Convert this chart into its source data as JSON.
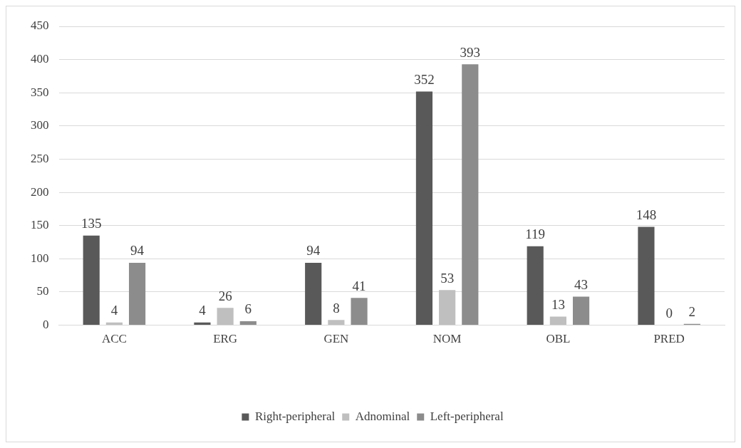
{
  "chart_data": {
    "type": "bar",
    "categories": [
      "ACC",
      "ERG",
      "GEN",
      "NOM",
      "OBL",
      "PRED"
    ],
    "series": [
      {
        "name": "Right-peripheral",
        "color": "#595959",
        "values": [
          135,
          4,
          94,
          352,
          119,
          148
        ]
      },
      {
        "name": "Adnominal",
        "color": "#bfbfbf",
        "values": [
          4,
          26,
          8,
          53,
          13,
          0
        ]
      },
      {
        "name": "Left-peripheral",
        "color": "#8c8c8c",
        "values": [
          94,
          6,
          41,
          393,
          43,
          2
        ]
      }
    ],
    "ylim": [
      0,
      450
    ],
    "yticks": [
      0,
      50,
      100,
      150,
      200,
      250,
      300,
      350,
      400,
      450
    ],
    "grid": "y",
    "legend": "bottom",
    "data_labels": true
  }
}
